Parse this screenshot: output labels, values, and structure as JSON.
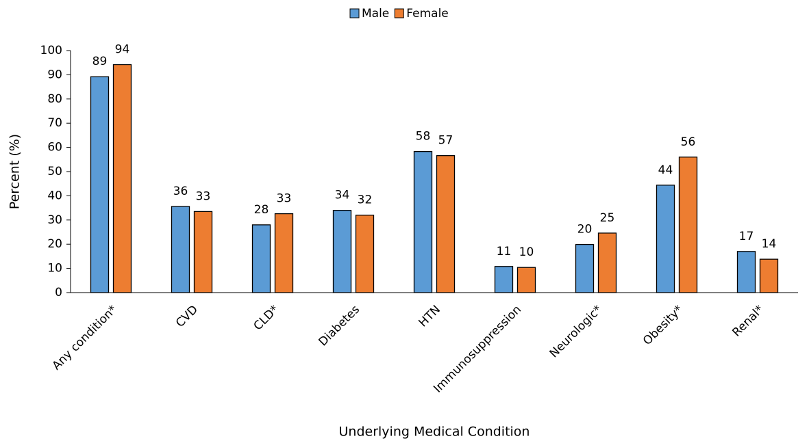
{
  "chart_data": {
    "type": "bar",
    "xlabel": "Underlying Medical Condition",
    "ylabel": "Percent (%)",
    "categories": [
      "Any condition*",
      "CVD",
      "CLD*",
      "Diabetes",
      "HTN",
      "Immunosuppression",
      "Neurologic*",
      "Obesity*",
      "Renal*"
    ],
    "series": [
      {
        "name": "Male",
        "color": "#5b9bd5",
        "values": [
          89.2,
          35.6,
          28,
          34,
          58.3,
          10.8,
          19.9,
          44.4,
          17
        ],
        "value_labels": [
          "89",
          "36",
          "28",
          "34",
          "58",
          "11",
          "20",
          "44",
          "17"
        ]
      },
      {
        "name": "Female",
        "color": "#ed7d31",
        "values": [
          94.2,
          33.5,
          32.6,
          32,
          56.6,
          10.4,
          24.6,
          56,
          13.8
        ],
        "value_labels": [
          "94",
          "33",
          "33",
          "32",
          "57",
          "10",
          "25",
          "56",
          "14"
        ]
      }
    ],
    "ylim": [
      0,
      100
    ],
    "yticks": [
      0,
      10,
      20,
      30,
      40,
      50,
      60,
      70,
      80,
      90,
      100
    ],
    "grid": false,
    "legend": "top"
  }
}
